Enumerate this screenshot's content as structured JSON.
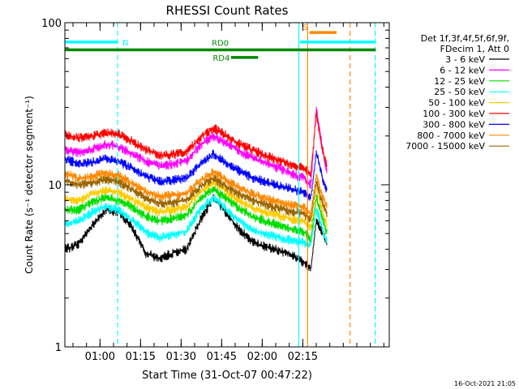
{
  "chart_data": {
    "type": "line",
    "title": "RHESSI Count Rates",
    "xlabel": "Start Time (31-Oct-07 00:47:22)",
    "ylabel": "Count Rate (s⁻¹ detector segment⁻¹)",
    "yscale": "log",
    "ylim": [
      1,
      100
    ],
    "xlim_minutes_after_0047": [
      0,
      97
    ],
    "x_ticks": [
      "01:00",
      "01:15",
      "01:30",
      "01:45",
      "02:00",
      "02:15"
    ],
    "y_ticks": [
      "1",
      "10",
      "100"
    ],
    "footer": "16-Oct-2021 21:05",
    "legend": {
      "header": [
        "Det 1f,3f,4f,5f,6f,9f,",
        "FDecim 1, Att 0"
      ],
      "placement": "right-outside"
    },
    "series": [
      {
        "name": "3 - 6 keV",
        "color": "#000000",
        "x": [
          0,
          5,
          10,
          15,
          20,
          25,
          30,
          35,
          40,
          45,
          50,
          55,
          60,
          65,
          70,
          75,
          80,
          85,
          88.5,
          91,
          93,
          95,
          97
        ],
        "y": [
          4.0,
          4.3,
          5.6,
          7.0,
          6.8,
          5.4,
          3.8,
          3.5,
          3.8,
          4.0,
          6.0,
          8.4,
          6.6,
          5.2,
          4.4,
          4.1,
          3.9,
          3.6,
          3.3,
          3.0,
          6.0,
          5.2,
          4.4
        ]
      },
      {
        "name": "6 - 12 keV",
        "color": "#ff00ff",
        "x": [
          0,
          5,
          10,
          15,
          20,
          25,
          30,
          35,
          40,
          45,
          50,
          55,
          60,
          65,
          70,
          75,
          80,
          85,
          88.5,
          91,
          93,
          95,
          97
        ],
        "y": [
          16.5,
          15.8,
          16.5,
          17.8,
          17.2,
          15.5,
          14.0,
          13.0,
          13.5,
          14.0,
          17.5,
          20.0,
          18.0,
          16.0,
          14.5,
          13.5,
          12.5,
          11.5,
          11.0,
          10.0,
          30.0,
          18.0,
          12.0
        ]
      },
      {
        "name": "12 - 25 keV",
        "color": "#00dd00",
        "x": [
          0,
          5,
          10,
          15,
          20,
          25,
          30,
          35,
          40,
          45,
          50,
          55,
          60,
          65,
          70,
          75,
          80,
          85,
          88.5,
          91,
          93,
          95,
          97
        ],
        "y": [
          7.0,
          7.0,
          7.8,
          8.3,
          8.0,
          7.2,
          6.4,
          6.0,
          6.2,
          6.5,
          8.2,
          9.5,
          8.2,
          7.1,
          6.3,
          5.9,
          5.6,
          5.3,
          5.1,
          4.6,
          8.5,
          6.5,
          5.0
        ]
      },
      {
        "name": "25 - 50 keV",
        "color": "#00ffff",
        "x": [
          0,
          5,
          10,
          15,
          20,
          25,
          30,
          35,
          40,
          45,
          50,
          55,
          60,
          65,
          70,
          75,
          80,
          85,
          88.5,
          91,
          93,
          95,
          97
        ],
        "y": [
          5.7,
          6.0,
          6.8,
          7.3,
          7.0,
          6.0,
          5.1,
          4.7,
          4.9,
          5.2,
          7.0,
          8.4,
          7.0,
          5.9,
          5.2,
          4.9,
          4.7,
          4.5,
          4.4,
          4.2,
          7.2,
          5.5,
          4.4
        ]
      },
      {
        "name": "50 - 100 keV",
        "color": "#ffcc00",
        "x": [
          0,
          5,
          10,
          15,
          20,
          25,
          30,
          35,
          40,
          45,
          50,
          55,
          60,
          65,
          70,
          75,
          80,
          85,
          88.5,
          91,
          93,
          95,
          97
        ],
        "y": [
          8.1,
          8.0,
          8.8,
          9.3,
          9.0,
          8.1,
          7.3,
          6.8,
          7.0,
          7.3,
          9.0,
          10.4,
          9.0,
          7.9,
          7.1,
          6.7,
          6.4,
          6.1,
          5.9,
          5.4,
          9.5,
          7.2,
          5.6
        ]
      },
      {
        "name": "100 - 300 keV",
        "color": "#ff0000",
        "x": [
          0,
          5,
          10,
          15,
          20,
          25,
          30,
          35,
          40,
          45,
          50,
          55,
          60,
          65,
          70,
          75,
          80,
          85,
          88.5,
          91,
          93,
          95,
          97
        ],
        "y": [
          20.5,
          19.5,
          20.0,
          21.0,
          20.5,
          18.5,
          16.5,
          15.2,
          15.4,
          16.0,
          19.5,
          22.5,
          20.0,
          17.8,
          16.2,
          15.0,
          14.0,
          13.2,
          12.8,
          11.5,
          28.0,
          17.0,
          13.0
        ]
      },
      {
        "name": "300 - 800 keV",
        "color": "#0000ff",
        "x": [
          0,
          5,
          10,
          15,
          20,
          25,
          30,
          35,
          40,
          45,
          50,
          55,
          60,
          65,
          70,
          75,
          80,
          85,
          88.5,
          91,
          93,
          95,
          97
        ],
        "y": [
          14.5,
          13.5,
          13.8,
          14.5,
          14.0,
          12.6,
          11.3,
          10.5,
          10.7,
          11.0,
          13.5,
          15.5,
          13.5,
          12.0,
          11.0,
          10.3,
          9.8,
          9.3,
          9.0,
          8.2,
          16.0,
          11.5,
          9.2
        ]
      },
      {
        "name": "800 - 7000 keV",
        "color": "#ff8800",
        "x": [
          0,
          5,
          10,
          15,
          20,
          25,
          30,
          35,
          40,
          45,
          50,
          55,
          60,
          65,
          70,
          75,
          80,
          85,
          88.5,
          91,
          93,
          95,
          97
        ],
        "y": [
          11.8,
          11.0,
          11.3,
          11.8,
          11.4,
          10.2,
          9.1,
          8.5,
          8.6,
          8.9,
          10.6,
          12.0,
          10.6,
          9.5,
          8.7,
          8.2,
          7.8,
          7.4,
          7.2,
          6.6,
          11.5,
          8.8,
          7.2
        ]
      },
      {
        "name": "7000 - 15000 keV",
        "color": "#996600",
        "x": [
          0,
          5,
          10,
          15,
          20,
          25,
          30,
          35,
          40,
          45,
          50,
          55,
          60,
          65,
          70,
          75,
          80,
          85,
          88.5,
          91,
          93,
          95,
          97
        ],
        "y": [
          10.6,
          10.0,
          10.3,
          10.8,
          10.4,
          9.3,
          8.3,
          7.7,
          7.8,
          8.1,
          9.7,
          11.0,
          9.7,
          8.7,
          8.0,
          7.5,
          7.1,
          6.8,
          6.6,
          6.0,
          10.5,
          8.0,
          6.6
        ]
      }
    ],
    "vertical_lines": [
      {
        "x": 19.5,
        "color": "#00ffff",
        "style": "dashed"
      },
      {
        "x": 86.5,
        "color": "#00ffff",
        "style": "solid"
      },
      {
        "x": 89.8,
        "color": "#ff8800",
        "style": "solid"
      },
      {
        "x": 105.5,
        "color": "#ff8800",
        "style": "dashed"
      },
      {
        "x": 114.8,
        "color": "#00ffff",
        "style": "dashed"
      }
    ],
    "status_bars": [
      {
        "label": "N",
        "color": "#00ffff",
        "x_start": 0,
        "x_end": 19.5,
        "y_value": 76
      },
      {
        "label": "S",
        "color": "#ff8800",
        "x_start": 90.5,
        "x_end": 100.5,
        "y_value": 87
      },
      {
        "label": "",
        "color": "#00ffff",
        "x_start": 87,
        "x_end": 115,
        "y_value": 76
      },
      {
        "label": "RD0",
        "color": "#008800",
        "x_start": 0,
        "x_end": 115,
        "y_value": 68
      },
      {
        "label": "RD4",
        "color": "#008800",
        "x_start": 61.5,
        "x_end": 71.5,
        "y_value": 61
      }
    ]
  }
}
